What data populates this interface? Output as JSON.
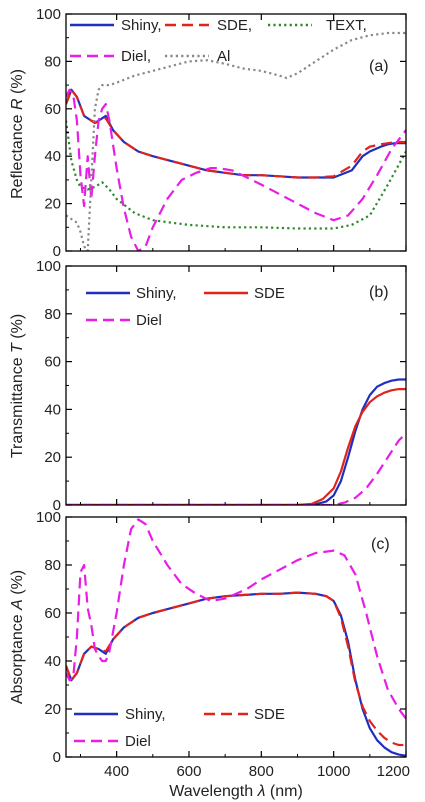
{
  "figure": {
    "xlabel_prefix": "Wavelength ",
    "xlabel_symbol": "λ",
    "xlabel_unit": " (nm)"
  },
  "chart_data": [
    {
      "type": "line",
      "panel_label": "(a)",
      "ylabel_prefix": "Reflectance ",
      "ylabel_symbol": "R",
      "ylabel_unit": " (%)",
      "xlim": [
        260,
        1200
      ],
      "ylim": [
        0,
        100
      ],
      "xticks": [
        400,
        600,
        800,
        1000,
        1200
      ],
      "yticks": [
        0,
        20,
        40,
        60,
        80,
        100
      ],
      "legend": {
        "placement": "top",
        "entries": [
          "Shiny,",
          "SDE,",
          "TEXT,",
          "Diel,",
          "Al"
        ]
      },
      "series": [
        {
          "name": "Shiny,",
          "color": "#1f2fbf",
          "dash": "solid",
          "x": [
            260,
            275,
            290,
            310,
            340,
            370,
            390,
            420,
            460,
            500,
            550,
            600,
            650,
            700,
            750,
            800,
            850,
            900,
            950,
            1000,
            1050,
            1080,
            1100,
            1130,
            1150,
            1170,
            1200
          ],
          "y": [
            62,
            68,
            65,
            57,
            54,
            57,
            51,
            46,
            42,
            40,
            38,
            36,
            34,
            33,
            32,
            32,
            31.5,
            31,
            31,
            31,
            34,
            40,
            42,
            44,
            45,
            45.5,
            45.5
          ]
        },
        {
          "name": "SDE,",
          "color": "#e0241c",
          "dash": "dashed",
          "x": [
            260,
            275,
            290,
            310,
            340,
            370,
            390,
            420,
            460,
            500,
            550,
            600,
            650,
            700,
            750,
            800,
            850,
            900,
            950,
            1000,
            1050,
            1080,
            1100,
            1130,
            1150,
            1170,
            1200
          ],
          "y": [
            62,
            68,
            65,
            57,
            54,
            56,
            51,
            46,
            42,
            40,
            38,
            36,
            34,
            33,
            32,
            32,
            31.5,
            31,
            31,
            31.5,
            36,
            42,
            44,
            45,
            45.5,
            46,
            46
          ]
        },
        {
          "name": "TEXT,",
          "color": "#2d8a2d",
          "dash": "dotted",
          "x": [
            260,
            275,
            290,
            300,
            320,
            340,
            360,
            380,
            400,
            450,
            500,
            550,
            600,
            700,
            800,
            900,
            1000,
            1050,
            1100,
            1150,
            1200
          ],
          "y": [
            55,
            38,
            30,
            27,
            26,
            27,
            29,
            26,
            22,
            16,
            13,
            12,
            11,
            10,
            10,
            9.5,
            9.5,
            11,
            15,
            28,
            42
          ]
        },
        {
          "name": "Diel,",
          "color": "#e61ee6",
          "dash": "dashed",
          "x": [
            260,
            270,
            280,
            290,
            300,
            310,
            320,
            330,
            340,
            350,
            360,
            370,
            380,
            400,
            420,
            440,
            460,
            480,
            500,
            540,
            580,
            620,
            660,
            680,
            720,
            760,
            800,
            850,
            900,
            950,
            1000,
            1040,
            1080,
            1120,
            1160,
            1200
          ],
          "y": [
            65,
            68,
            66,
            55,
            32,
            19,
            40,
            22,
            40,
            55,
            60,
            62,
            55,
            35,
            18,
            6,
            0,
            2,
            10,
            22,
            30,
            33,
            35,
            35,
            34,
            31,
            28,
            24,
            20,
            16,
            13,
            15,
            22,
            32,
            43,
            51
          ]
        },
        {
          "name": "Al",
          "color": "#888888",
          "dash": "dotted",
          "x": [
            260,
            270,
            280,
            290,
            300,
            310,
            320,
            330,
            340,
            350,
            360,
            380,
            400,
            450,
            500,
            550,
            600,
            650,
            700,
            750,
            800,
            850,
            870,
            900,
            950,
            1000,
            1050,
            1100,
            1150,
            1200
          ],
          "y": [
            15,
            14,
            13,
            12,
            8,
            2,
            0,
            30,
            60,
            68,
            70,
            70,
            71,
            74,
            76,
            78,
            80,
            80.5,
            79,
            77,
            76,
            74,
            73,
            75,
            80,
            85,
            89,
            91,
            92,
            92
          ]
        }
      ]
    },
    {
      "type": "line",
      "panel_label": "(b)",
      "ylabel_prefix": "Transmittance ",
      "ylabel_symbol": "T",
      "ylabel_unit": " (%)",
      "xlim": [
        260,
        1200
      ],
      "ylim": [
        0,
        100
      ],
      "xticks": [
        400,
        600,
        800,
        1000,
        1200
      ],
      "yticks": [
        0,
        20,
        40,
        60,
        80,
        100
      ],
      "legend": {
        "placement": "top-left",
        "entries": [
          "Shiny,",
          "SDE",
          "Diel"
        ]
      },
      "series": [
        {
          "name": "Shiny,",
          "color": "#1f2fbf",
          "dash": "solid",
          "x": [
            260,
            900,
            950,
            980,
            1000,
            1020,
            1040,
            1060,
            1080,
            1100,
            1120,
            1140,
            1160,
            1180,
            1200
          ],
          "y": [
            0,
            0,
            0.3,
            1.5,
            4,
            10,
            20,
            31,
            40,
            46,
            49.5,
            51,
            52,
            52.5,
            52.5
          ]
        },
        {
          "name": "SDE",
          "color": "#e0241c",
          "dash": "solid",
          "x": [
            260,
            900,
            940,
            970,
            1000,
            1020,
            1040,
            1060,
            1080,
            1100,
            1120,
            1140,
            1160,
            1180,
            1200
          ],
          "y": [
            0,
            0,
            0.5,
            2.5,
            7,
            14,
            24,
            33,
            39,
            43,
            45.5,
            47,
            48,
            48.5,
            48.5
          ]
        },
        {
          "name": "Diel",
          "color": "#e61ee6",
          "dash": "dashed",
          "x": [
            260,
            1000,
            1030,
            1060,
            1090,
            1120,
            1150,
            1180,
            1200
          ],
          "y": [
            0,
            0,
            1,
            3,
            7,
            13,
            20,
            27,
            30
          ]
        }
      ]
    },
    {
      "type": "line",
      "panel_label": "(c)",
      "ylabel_prefix": "Absorptance ",
      "ylabel_symbol": "A",
      "ylabel_unit": " (%)",
      "xlim": [
        260,
        1200
      ],
      "ylim": [
        0,
        100
      ],
      "xticks": [
        400,
        600,
        800,
        1000,
        1200
      ],
      "yticks": [
        0,
        20,
        40,
        60,
        80,
        100
      ],
      "legend": {
        "placement": "bottom-left",
        "entries": [
          "Shiny,",
          "SDE",
          "Diel"
        ]
      },
      "series": [
        {
          "name": "Shiny,",
          "color": "#1f2fbf",
          "dash": "solid",
          "x": [
            260,
            275,
            290,
            310,
            330,
            350,
            370,
            390,
            420,
            460,
            500,
            550,
            600,
            650,
            700,
            750,
            800,
            850,
            900,
            950,
            980,
            1000,
            1020,
            1040,
            1060,
            1080,
            1100,
            1120,
            1140,
            1160,
            1180,
            1200
          ],
          "y": [
            38,
            32,
            35,
            43,
            46,
            45,
            43,
            49,
            54,
            58,
            60,
            62,
            64,
            66,
            67,
            67.5,
            68,
            68,
            68.5,
            68,
            67,
            65,
            59,
            48,
            32,
            20,
            12,
            7,
            4,
            2,
            1,
            0.5
          ]
        },
        {
          "name": "SDE",
          "color": "#e0241c",
          "dash": "dashed",
          "x": [
            260,
            275,
            290,
            310,
            330,
            350,
            370,
            390,
            420,
            460,
            500,
            550,
            600,
            650,
            700,
            750,
            800,
            850,
            900,
            950,
            980,
            1000,
            1020,
            1040,
            1060,
            1080,
            1100,
            1120,
            1140,
            1160,
            1180,
            1200
          ],
          "y": [
            38,
            32,
            35,
            43,
            46,
            45,
            44,
            49,
            54,
            58,
            60,
            62,
            64,
            66,
            67,
            67.5,
            68,
            68,
            68.5,
            68,
            67,
            65,
            58,
            46,
            31,
            21,
            15,
            11,
            8,
            6,
            5,
            5
          ]
        },
        {
          "name": "Diel",
          "color": "#e61ee6",
          "dash": "dashed",
          "x": [
            260,
            270,
            280,
            290,
            300,
            310,
            320,
            330,
            340,
            350,
            360,
            370,
            380,
            400,
            420,
            440,
            460,
            480,
            500,
            540,
            580,
            620,
            660,
            700,
            760,
            800,
            850,
            900,
            950,
            1000,
            1030,
            1060,
            1090,
            1120,
            1150,
            1180,
            1200
          ],
          "y": [
            35,
            32,
            33,
            50,
            77,
            80,
            62,
            55,
            45,
            42,
            40,
            40,
            44,
            60,
            80,
            95,
            99,
            97,
            90,
            80,
            72,
            68,
            65,
            66,
            70,
            74,
            78,
            82,
            85,
            86,
            84,
            76,
            60,
            42,
            28,
            20,
            16
          ]
        }
      ]
    }
  ]
}
